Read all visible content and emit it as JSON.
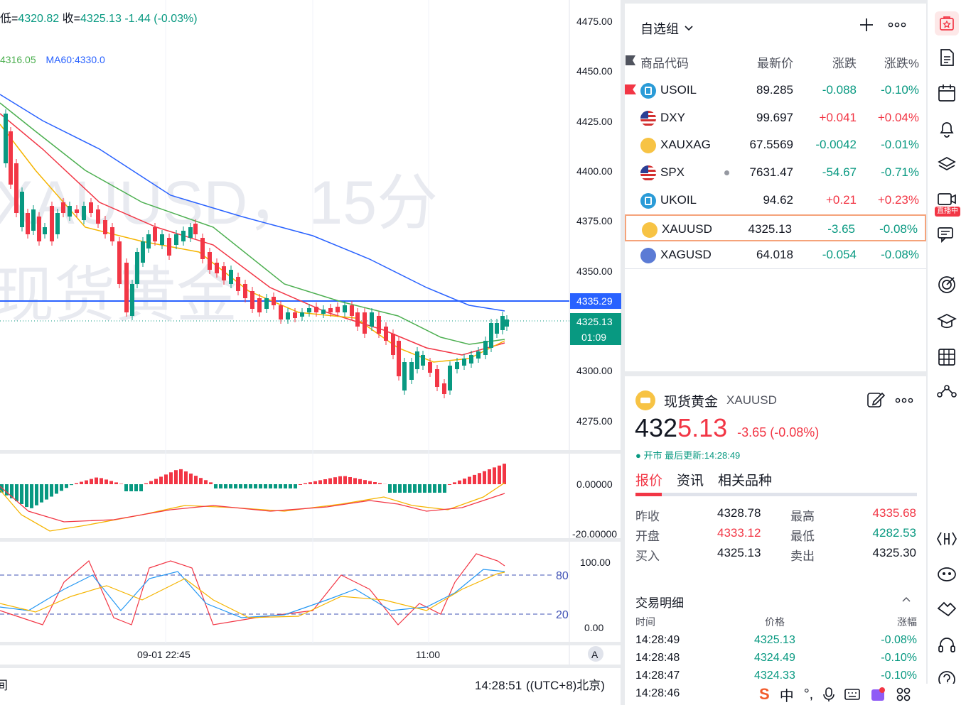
{
  "ohlc": {
    "low_label": "低=",
    "low": "4320.82",
    "close_label": "收=",
    "close": "4325.13",
    "chg": "-1.44",
    "chg_pct": "(-0.03%)"
  },
  "ma": {
    "ma_a": "4316.05",
    "ma60": "MA60:4330.0"
  },
  "watermark": {
    "line1": "XAUUSD，15分",
    "line2": "现货黄金"
  },
  "price_axis": [
    "4475.00",
    "4450.00",
    "4425.00",
    "4400.00",
    "4375.00",
    "4350.00",
    "4325.00",
    "4300.00",
    "4275.00"
  ],
  "marker_top": "4335.29",
  "marker_price": "4325.13",
  "marker_time": "01:09",
  "macd_axis": [
    "0.00000",
    "-20.00000"
  ],
  "osc_axis": [
    "100.00",
    "0.00"
  ],
  "osc_levels": [
    "80",
    "20"
  ],
  "time_axis": [
    "09-01 22:45",
    "11:00"
  ],
  "footer": {
    "clock": "14:28:51",
    "tz": "((UTC+8)北京)",
    "left": "间"
  },
  "colors": {
    "up": "#f23645",
    "down": "#089981",
    "accent": "#2962ff"
  },
  "watchlist": {
    "title": "自选组",
    "columns": [
      "商品代码",
      "最新价",
      "涨跌",
      "涨跌%"
    ],
    "rows": [
      {
        "symbol": "USOIL",
        "price": "89.285",
        "change": "-0.088",
        "pct": "-0.10%",
        "dir": "dn",
        "icon": "oil-icon"
      },
      {
        "symbol": "DXY",
        "price": "99.697",
        "change": "+0.041",
        "pct": "+0.04%",
        "dir": "up",
        "icon": "us-flag-icon"
      },
      {
        "symbol": "XAUXAG",
        "price": "67.5569",
        "change": "-0.0042",
        "pct": "-0.01%",
        "dir": "dn",
        "icon": "gold-silver-icon"
      },
      {
        "symbol": "SPX",
        "price": "7631.47",
        "change": "-54.67",
        "pct": "-0.71%",
        "dir": "dn",
        "icon": "us-flag-icon"
      },
      {
        "symbol": "UKOIL",
        "price": "94.62",
        "change": "+0.21",
        "pct": "+0.23%",
        "dir": "up",
        "icon": "oil-icon"
      },
      {
        "symbol": "XAUUSD",
        "price": "4325.13",
        "change": "-3.65",
        "pct": "-0.08%",
        "dir": "dn",
        "icon": "gold-icon"
      },
      {
        "symbol": "XAGUSD",
        "price": "64.018",
        "change": "-0.054",
        "pct": "-0.08%",
        "dir": "dn",
        "icon": "silver-icon"
      }
    ]
  },
  "detail": {
    "name": "现货黄金",
    "code": "XAUUSD",
    "price_int": "432",
    "price_dec": "5.13",
    "change": "-3.65 (-0.08%)",
    "status": "● 开市 最后更新:14:28:49",
    "tabs": [
      "报价",
      "资讯",
      "相关品种"
    ],
    "stats": [
      {
        "label": "昨收",
        "value": "4328.78",
        "label2": "最高",
        "value2": "4335.68"
      },
      {
        "label": "开盘",
        "value": "4333.12",
        "label2": "最低",
        "value2": "4282.53"
      },
      {
        "label": "买入",
        "value": "4325.13",
        "label2": "卖出",
        "value2": "4325.30"
      }
    ],
    "trades_title": "交易明细",
    "trade_cols": [
      "时间",
      "价格",
      "涨幅"
    ],
    "trades": [
      {
        "time": "14:28:49",
        "price": "4325.13",
        "pct": "-0.08%"
      },
      {
        "time": "14:28:48",
        "price": "4324.49",
        "pct": "-0.10%"
      },
      {
        "time": "14:28:47",
        "price": "4324.33",
        "pct": "-0.10%"
      },
      {
        "time": "14:28:46",
        "price": "",
        "pct": ""
      }
    ]
  },
  "sidebar": {
    "live_badge": "直播中"
  },
  "taskbar": {
    "ime": "中"
  }
}
